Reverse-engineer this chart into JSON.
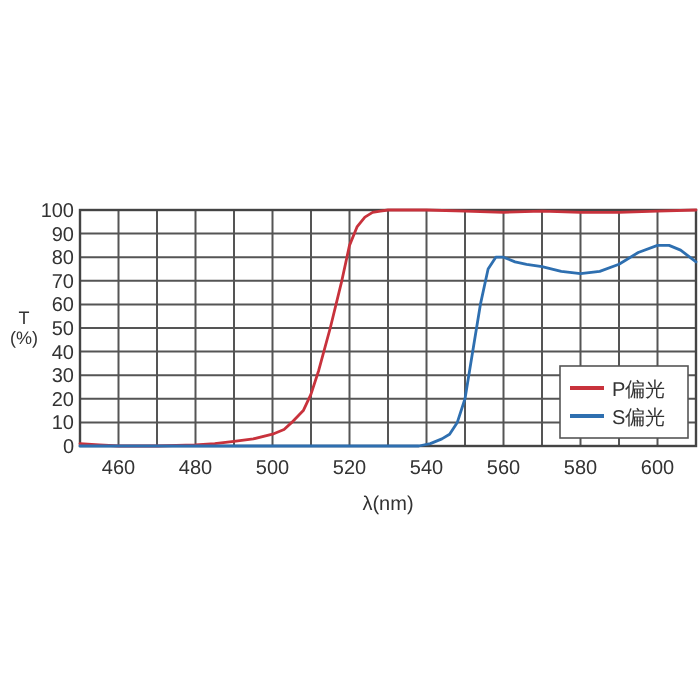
{
  "chart_data": {
    "type": "line",
    "xlabel": "λ(nm)",
    "ylabel": "T\n(%)",
    "xlim": [
      450,
      610
    ],
    "ylim": [
      0,
      100
    ],
    "xticks": [
      {
        "value": 450,
        "label": null
      },
      460,
      {
        "value": 470,
        "label": null
      },
      480,
      {
        "value": 490,
        "label": null
      },
      500,
      {
        "value": 510,
        "label": null
      },
      520,
      {
        "value": 530,
        "label": null
      },
      540,
      {
        "value": 550,
        "label": null
      },
      560,
      {
        "value": 570,
        "label": null
      },
      580,
      {
        "value": 590,
        "label": null
      },
      600,
      {
        "value": 610,
        "label": null
      }
    ],
    "yticks": [
      0,
      10,
      20,
      30,
      40,
      50,
      60,
      70,
      80,
      90,
      100
    ],
    "grid": true,
    "legend": "bottom right",
    "marker": "none",
    "line_style": "solid",
    "series": [
      {
        "name": "P偏光",
        "color": "#c8323c",
        "x": [
          450,
          455,
          460,
          470,
          480,
          485,
          490,
          495,
          500,
          503,
          505,
          508,
          510,
          512,
          515,
          518,
          520,
          522,
          524,
          526,
          528,
          530,
          540,
          550,
          560,
          570,
          580,
          590,
          600,
          610
        ],
        "values": [
          1,
          0.5,
          0,
          0,
          0.5,
          1,
          2,
          3,
          5,
          7,
          10,
          15,
          22,
          32,
          50,
          70,
          85,
          93,
          97,
          99,
          99.5,
          100,
          100,
          99.5,
          99,
          99.5,
          99,
          99,
          99.5,
          100
        ]
      },
      {
        "name": "S偏光",
        "color": "#2e6fb0",
        "x": [
          450,
          500,
          530,
          538,
          541,
          544,
          546,
          548,
          550,
          552,
          554,
          556,
          558,
          560,
          563,
          566,
          570,
          575,
          580,
          585,
          590,
          595,
          600,
          603,
          606,
          610
        ],
        "values": [
          0,
          0,
          0,
          0,
          1,
          3,
          5,
          10,
          20,
          40,
          60,
          75,
          80,
          80,
          78,
          77,
          76,
          74,
          73,
          74,
          77,
          82,
          85,
          85,
          83,
          78
        ]
      }
    ]
  }
}
